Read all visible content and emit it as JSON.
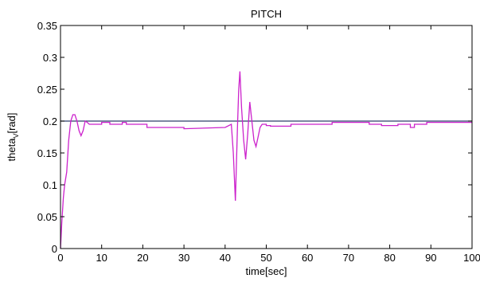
{
  "chart_data": {
    "type": "line",
    "title": "PITCH",
    "xlabel": "time[sec]",
    "ylabel": {
      "main": "theta",
      "sub": "V",
      "unit": "[rad]"
    },
    "xlim": [
      0,
      100
    ],
    "ylim": [
      0,
      0.35
    ],
    "x_ticks": [
      0,
      10,
      20,
      30,
      40,
      50,
      60,
      70,
      80,
      90,
      100
    ],
    "x_tick_labels": [
      "0",
      "10",
      "20",
      "30",
      "40",
      "50",
      "60",
      "70",
      "80",
      "90",
      "100"
    ],
    "y_ticks": [
      0,
      0.05,
      0.1,
      0.15,
      0.2,
      0.25,
      0.3,
      0.35
    ],
    "y_tick_labels": [
      "0",
      "0.05",
      "0.1",
      "0.15",
      "0.2",
      "0.25",
      "0.3",
      "0.35"
    ],
    "grid": false,
    "colors": {
      "reference": "#2f3f6a",
      "response": "#cc22cc",
      "axes": "#000000"
    },
    "series": [
      {
        "role": "reference",
        "x": [
          0,
          100
        ],
        "y": [
          0.2,
          0.2
        ]
      },
      {
        "role": "response",
        "x": [
          0,
          0.3,
          0.7,
          1.0,
          1.5,
          2.0,
          2.5,
          3.0,
          3.5,
          4.0,
          4.5,
          5.0,
          5.5,
          6.0,
          6.5,
          7.0,
          8.0,
          9.0,
          10.0,
          10.0,
          12.0,
          12.0,
          15.0,
          15.0,
          16.0,
          16.0,
          21.0,
          21.0,
          22.0,
          22.0,
          30.0,
          30.0,
          40.0,
          41.5,
          42.0,
          42.5,
          43.0,
          43.3,
          43.6,
          44.0,
          44.5,
          45.0,
          45.5,
          46.0,
          46.5,
          47.0,
          47.5,
          48.0,
          48.5,
          49.0,
          50.0,
          50.0,
          51.0,
          51.0,
          56.0,
          56.0,
          63.0,
          63.0,
          66.0,
          66.0,
          68.0,
          68.0,
          70.0,
          70.0,
          75.0,
          75.0,
          78.0,
          78.0,
          82.0,
          82.0,
          85.0,
          85.0,
          86.0,
          86.0,
          89.0,
          89.0,
          95.0,
          95.0,
          100.0
        ],
        "y": [
          0.0,
          0.04,
          0.08,
          0.1,
          0.12,
          0.17,
          0.2,
          0.21,
          0.21,
          0.2,
          0.185,
          0.177,
          0.185,
          0.2,
          0.198,
          0.195,
          0.195,
          0.195,
          0.195,
          0.198,
          0.198,
          0.195,
          0.195,
          0.198,
          0.198,
          0.195,
          0.195,
          0.19,
          0.19,
          0.19,
          0.19,
          0.188,
          0.19,
          0.195,
          0.15,
          0.075,
          0.19,
          0.25,
          0.278,
          0.22,
          0.17,
          0.14,
          0.18,
          0.23,
          0.2,
          0.17,
          0.16,
          0.175,
          0.19,
          0.195,
          0.195,
          0.193,
          0.193,
          0.192,
          0.192,
          0.195,
          0.195,
          0.195,
          0.195,
          0.198,
          0.198,
          0.198,
          0.198,
          0.198,
          0.198,
          0.195,
          0.195,
          0.193,
          0.193,
          0.195,
          0.195,
          0.19,
          0.19,
          0.195,
          0.195,
          0.198,
          0.198,
          0.198,
          0.198
        ]
      }
    ]
  }
}
